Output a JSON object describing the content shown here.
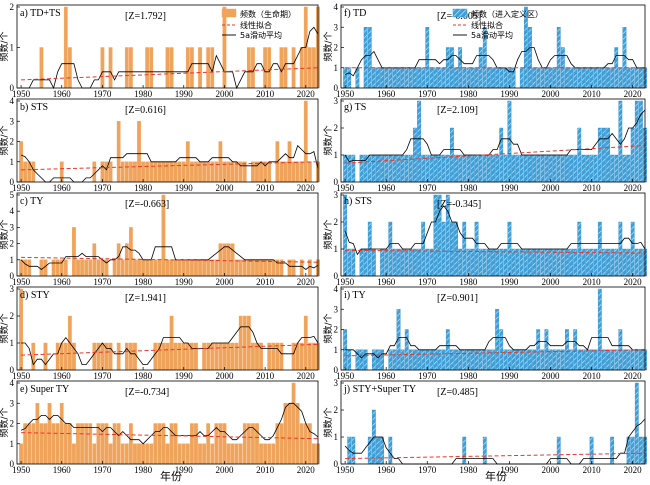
{
  "figure": {
    "xlabel": "年份",
    "ylabel": "频数/个"
  },
  "legends": [
    {
      "panel": 0,
      "bar_label": "频数（生命期）",
      "fit_label": "线性拟合",
      "ma_label": "5a滑动平均"
    },
    {
      "panel": 5,
      "bar_label": "频数（进入定义区）",
      "fit_label": "线性拟合",
      "ma_label": "5a滑动平均"
    }
  ],
  "chart_data": [
    {
      "type": "bar",
      "panel_label": "a)",
      "title": "TD+TS",
      "stat": "[Z=1.792]",
      "x_start": 1950,
      "xlim": [
        1949,
        2023
      ],
      "ylim": [
        0,
        2
      ],
      "yticks": [
        0,
        1,
        2
      ],
      "xticks": [
        1950,
        1960,
        1970,
        1980,
        1990,
        2000,
        2010,
        2020
      ],
      "values": [
        0,
        0,
        0,
        0,
        0,
        1,
        0,
        0,
        0,
        0,
        0,
        2,
        1,
        0,
        0,
        0,
        0,
        0,
        0,
        0,
        1,
        0,
        1,
        0,
        0,
        0,
        1,
        1,
        0,
        0,
        0,
        1,
        1,
        0,
        0,
        0,
        1,
        1,
        0,
        0,
        0,
        1,
        1,
        0,
        1,
        0,
        1,
        1,
        0,
        0,
        2,
        0,
        0,
        0,
        0,
        0,
        1,
        1,
        0,
        0,
        1,
        1,
        0,
        0,
        1,
        1,
        0,
        1,
        0,
        1,
        2,
        1,
        1,
        2
      ],
      "fit": [
        0.2,
        0.5
      ]
    },
    {
      "type": "bar",
      "panel_label": "b)",
      "title": "STS",
      "stat": "[Z=0.616]",
      "x_start": 1950,
      "xlim": [
        1949,
        2023
      ],
      "ylim": [
        0,
        4
      ],
      "yticks": [
        0,
        1,
        2,
        3,
        4
      ],
      "xticks": [
        1950,
        1960,
        1970,
        1980,
        1990,
        2000,
        2010,
        2020
      ],
      "values": [
        2,
        1,
        1,
        1,
        0,
        0,
        0,
        0,
        0,
        0,
        1,
        0,
        0,
        0,
        0,
        0,
        0,
        0,
        1,
        0,
        1,
        1,
        1,
        0,
        3,
        1,
        1,
        1,
        1,
        3,
        1,
        1,
        1,
        1,
        1,
        1,
        1,
        1,
        1,
        1,
        1,
        2,
        1,
        1,
        1,
        1,
        1,
        1,
        1,
        2,
        1,
        1,
        1,
        1,
        1,
        1,
        0,
        1,
        1,
        1,
        1,
        1,
        0,
        2,
        1,
        1,
        2,
        1,
        1,
        1,
        4,
        1,
        0,
        1
      ],
      "fit": [
        0.6,
        1.0
      ]
    },
    {
      "type": "bar",
      "panel_label": "c)",
      "title": "TY",
      "stat": "[Z=-0.663]",
      "x_start": 1950,
      "xlim": [
        1949,
        2023
      ],
      "ylim": [
        0,
        5
      ],
      "yticks": [
        0,
        1,
        2,
        3,
        4,
        5
      ],
      "xticks": [
        1950,
        1960,
        1970,
        1980,
        1990,
        2000,
        2010,
        2020
      ],
      "values": [
        1,
        1,
        1,
        0,
        0,
        1,
        1,
        0,
        1,
        1,
        1,
        1,
        0,
        3,
        1,
        1,
        1,
        1,
        2,
        1,
        1,
        1,
        0,
        1,
        2,
        1,
        2,
        3,
        1,
        1,
        1,
        1,
        1,
        1,
        1,
        5,
        1,
        1,
        1,
        1,
        1,
        1,
        1,
        1,
        1,
        1,
        1,
        1,
        1,
        2,
        2,
        2,
        2,
        1,
        1,
        1,
        1,
        1,
        1,
        1,
        1,
        1,
        1,
        1,
        1,
        0,
        1,
        1,
        0,
        1,
        0,
        1,
        0,
        1
      ],
      "fit": [
        1.15,
        0.85
      ]
    },
    {
      "type": "bar",
      "panel_label": "d)",
      "title": "STY",
      "stat": "[Z=1.941]",
      "x_start": 1950,
      "xlim": [
        1949,
        2023
      ],
      "ylim": [
        0,
        3
      ],
      "yticks": [
        0,
        1,
        2,
        3
      ],
      "xticks": [
        1950,
        1960,
        1970,
        1980,
        1990,
        2000,
        2010,
        2020
      ],
      "values": [
        3,
        0,
        0,
        1,
        0,
        0,
        1,
        0,
        0,
        1,
        1,
        1,
        2,
        1,
        0,
        0,
        0,
        0,
        1,
        1,
        1,
        1,
        1,
        0,
        1,
        0,
        1,
        1,
        1,
        0,
        0,
        0,
        0,
        1,
        1,
        1,
        1,
        2,
        1,
        1,
        1,
        1,
        1,
        1,
        0,
        1,
        1,
        1,
        1,
        1,
        1,
        1,
        1,
        1,
        2,
        2,
        2,
        1,
        1,
        1,
        0,
        1,
        1,
        1,
        1,
        0,
        0,
        1,
        1,
        1,
        2,
        1,
        1,
        1
      ],
      "fit": [
        0.55,
        0.95
      ]
    },
    {
      "type": "bar",
      "panel_label": "e)",
      "title": "Super TY",
      "stat": "[Z=-0.734]",
      "x_start": 1950,
      "xlim": [
        1949,
        2023
      ],
      "ylim": [
        0,
        4
      ],
      "yticks": [
        0,
        1,
        2,
        3,
        4
      ],
      "xticks": [
        1950,
        1960,
        1970,
        1980,
        1990,
        2000,
        2010,
        2020
      ],
      "values": [
        1,
        2,
        2,
        2,
        3,
        2,
        2,
        3,
        2,
        2,
        3,
        2,
        2,
        1,
        2,
        2,
        2,
        2,
        1,
        2,
        2,
        2,
        1,
        2,
        2,
        1,
        1,
        2,
        1,
        1,
        1,
        1,
        1,
        2,
        2,
        2,
        1,
        2,
        2,
        1,
        1,
        1,
        2,
        2,
        1,
        1,
        2,
        1,
        2,
        2,
        2,
        1,
        1,
        1,
        1,
        2,
        2,
        2,
        2,
        1,
        1,
        1,
        1,
        2,
        2,
        3,
        3,
        4,
        3,
        2,
        2,
        2,
        1,
        1
      ],
      "fit": [
        1.55,
        1.25
      ]
    },
    {
      "type": "bar",
      "panel_label": "f)",
      "title": "TD",
      "stat": "[Z=-0.005]",
      "x_start": 1950,
      "xlim": [
        1949,
        2023
      ],
      "ylim": [
        0,
        4
      ],
      "yticks": [
        0,
        1,
        2,
        3,
        4
      ],
      "xticks": [
        1950,
        1960,
        1970,
        1980,
        1990,
        2000,
        2010,
        2020
      ],
      "values": [
        1,
        1,
        0,
        1,
        0,
        3,
        3,
        1,
        1,
        1,
        1,
        1,
        1,
        1,
        1,
        1,
        1,
        1,
        1,
        1,
        3,
        1,
        1,
        1,
        1,
        2,
        2,
        1,
        2,
        1,
        1,
        1,
        1,
        2,
        3,
        1,
        1,
        1,
        1,
        1,
        1,
        1,
        0,
        1,
        4,
        3,
        1,
        1,
        1,
        1,
        1,
        1,
        3,
        2,
        1,
        1,
        1,
        1,
        1,
        1,
        1,
        1,
        1,
        1,
        1,
        1,
        2,
        1,
        3,
        1,
        1,
        1,
        1,
        1
      ],
      "fit": [
        1.0,
        1.0
      ]
    },
    {
      "type": "bar",
      "panel_label": "g)",
      "title": "TS",
      "stat": "[Z=2.109]",
      "x_start": 1950,
      "xlim": [
        1949,
        2023
      ],
      "ylim": [
        0,
        3
      ],
      "yticks": [
        0,
        1,
        2,
        3
      ],
      "xticks": [
        1950,
        1960,
        1970,
        1980,
        1990,
        2000,
        2010,
        2020
      ],
      "values": [
        1,
        1,
        1,
        0,
        1,
        1,
        1,
        1,
        1,
        1,
        1,
        1,
        1,
        1,
        1,
        1,
        1,
        2,
        3,
        1,
        1,
        1,
        1,
        1,
        1,
        1,
        2,
        1,
        1,
        1,
        1,
        1,
        1,
        1,
        1,
        1,
        1,
        1,
        2,
        1,
        3,
        1,
        1,
        1,
        1,
        1,
        1,
        1,
        1,
        1,
        1,
        1,
        1,
        1,
        1,
        1,
        1,
        2,
        1,
        1,
        1,
        1,
        2,
        2,
        2,
        1,
        1,
        3,
        1,
        1,
        2,
        3,
        3,
        2
      ],
      "fit": [
        0.7,
        1.35
      ]
    },
    {
      "type": "bar",
      "panel_label": "h)",
      "title": "STS",
      "stat": "[Z=-0.345]",
      "x_start": 1950,
      "xlim": [
        1949,
        2023
      ],
      "ylim": [
        0,
        3
      ],
      "yticks": [
        0,
        1,
        2,
        3
      ],
      "xticks": [
        1950,
        1960,
        1970,
        1980,
        1990,
        2000,
        2010,
        2020
      ],
      "values": [
        3,
        1,
        1,
        0,
        1,
        1,
        2,
        1,
        0,
        1,
        1,
        2,
        1,
        1,
        1,
        1,
        1,
        1,
        1,
        2,
        1,
        1,
        3,
        3,
        2,
        3,
        2,
        2,
        1,
        2,
        1,
        1,
        2,
        1,
        1,
        1,
        1,
        1,
        1,
        1,
        2,
        1,
        1,
        1,
        1,
        1,
        1,
        1,
        1,
        1,
        1,
        1,
        1,
        1,
        1,
        1,
        1,
        2,
        1,
        1,
        1,
        1,
        2,
        1,
        1,
        1,
        1,
        2,
        1,
        1,
        2,
        1,
        1,
        1
      ],
      "fit": [
        0.95,
        0.85
      ]
    },
    {
      "type": "bar",
      "panel_label": "i)",
      "title": "TY",
      "stat": "[Z=0.901]",
      "x_start": 1950,
      "xlim": [
        1949,
        2023
      ],
      "ylim": [
        0,
        4
      ],
      "yticks": [
        0,
        1,
        2,
        3,
        4
      ],
      "xticks": [
        1950,
        1960,
        1970,
        1980,
        1990,
        2000,
        2010,
        2020
      ],
      "values": [
        2,
        1,
        0,
        1,
        1,
        1,
        0,
        1,
        1,
        1,
        0,
        1,
        1,
        3,
        1,
        2,
        1,
        1,
        1,
        1,
        1,
        1,
        1,
        1,
        1,
        2,
        1,
        1,
        1,
        1,
        1,
        1,
        1,
        1,
        1,
        1,
        1,
        3,
        2,
        1,
        1,
        1,
        1,
        1,
        1,
        1,
        1,
        2,
        1,
        2,
        1,
        1,
        1,
        1,
        2,
        1,
        2,
        1,
        1,
        1,
        1,
        1,
        4,
        1,
        1,
        1,
        1,
        2,
        1,
        1,
        1,
        1,
        1,
        1
      ],
      "fit": [
        0.7,
        1.0
      ]
    },
    {
      "type": "bar",
      "panel_label": "j)",
      "title": "STY+Super TY",
      "stat": "[Z=0.485]",
      "x_start": 1950,
      "xlim": [
        1949,
        2023
      ],
      "ylim": [
        0,
        3
      ],
      "yticks": [
        0,
        1,
        2,
        3
      ],
      "xticks": [
        1950,
        1960,
        1970,
        1980,
        1990,
        2000,
        2010,
        2020
      ],
      "values": [
        0,
        1,
        1,
        0,
        0,
        0,
        1,
        2,
        1,
        1,
        0,
        1,
        0,
        0,
        0,
        0,
        0,
        0,
        0,
        0,
        0,
        0,
        0,
        0,
        0,
        0,
        0,
        0,
        0,
        1,
        0,
        0,
        0,
        0,
        1,
        0,
        0,
        0,
        0,
        0,
        0,
        0,
        0,
        0,
        0,
        0,
        0,
        0,
        0,
        0,
        0,
        0,
        1,
        0,
        0,
        0,
        0,
        0,
        0,
        0,
        1,
        0,
        0,
        0,
        0,
        1,
        0,
        0,
        0,
        1,
        1,
        3,
        1,
        1
      ],
      "fit": [
        0.2,
        0.4
      ]
    }
  ]
}
